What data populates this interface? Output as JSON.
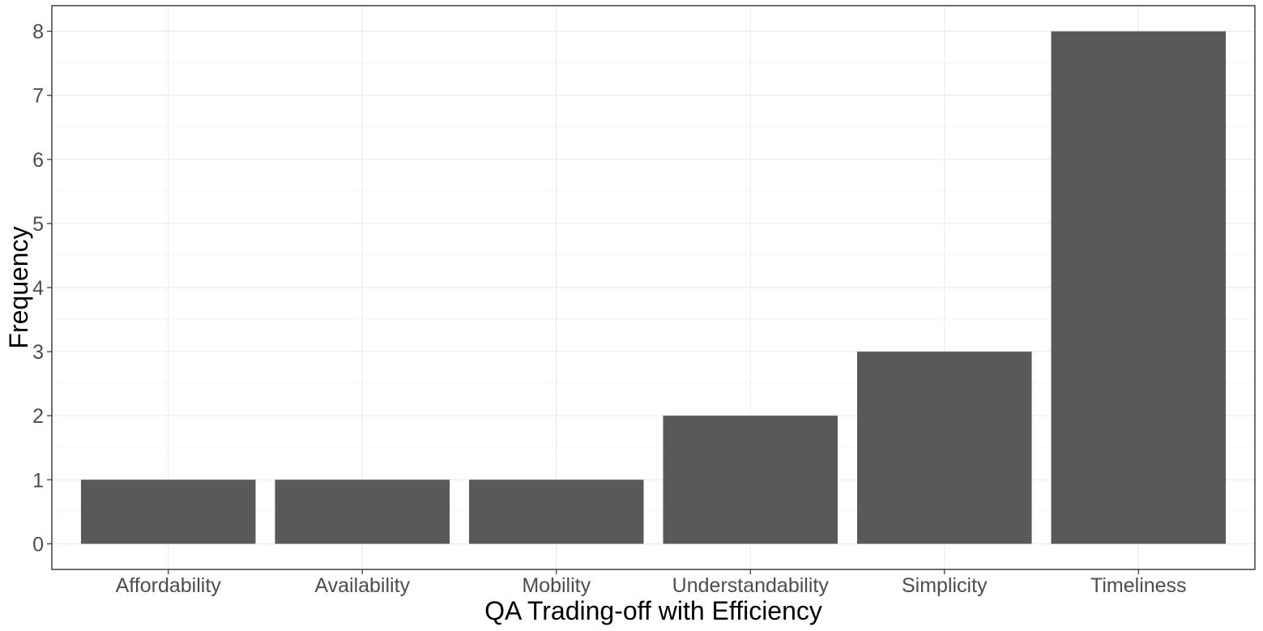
{
  "chart_data": {
    "type": "bar",
    "title": "",
    "xlabel": "QA Trading-off with Efficiency",
    "ylabel": "Frequency",
    "categories": [
      "Affordability",
      "Availability",
      "Mobility",
      "Understandability",
      "Simplicity",
      "Timeliness"
    ],
    "values": [
      1,
      1,
      1,
      2,
      3,
      8
    ],
    "ylim": [
      -0.4,
      8.4
    ],
    "yticks": [
      "0",
      "1",
      "2",
      "3",
      "4",
      "5",
      "6",
      "7",
      "8"
    ],
    "grid": true,
    "legend": "none",
    "colors": {
      "bar": "#595959",
      "grid_major": "#ebebeb",
      "grid_minor": "#f5f5f5",
      "panel_border": "#333333",
      "tick_text": "#4d4d4d"
    }
  }
}
